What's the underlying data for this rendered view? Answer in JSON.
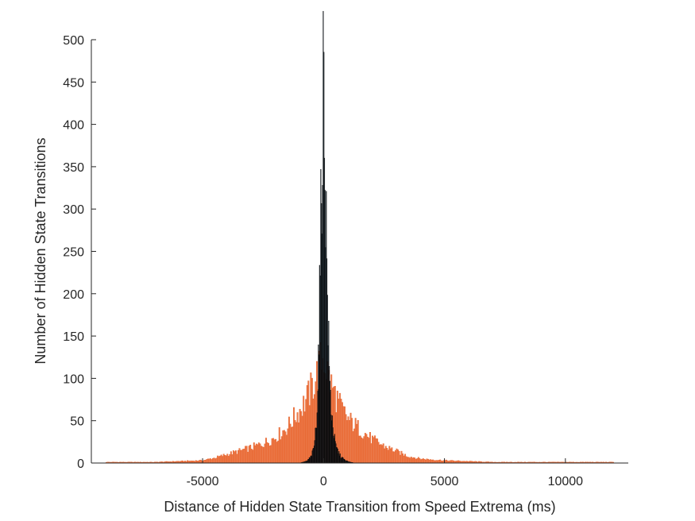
{
  "chart_data": {
    "type": "bar",
    "title": "",
    "xlabel": "Distance of Hidden State Transition from Speed Extrema (ms)",
    "ylabel": "Number of Hidden State Transitions",
    "xlim": [
      -9600,
      12600
    ],
    "ylim": [
      0,
      500
    ],
    "xticks": [
      -5000,
      0,
      5000,
      10000
    ],
    "yticks": [
      0,
      50,
      100,
      150,
      200,
      250,
      300,
      350,
      400,
      450,
      500
    ],
    "grid": false,
    "legend": "none",
    "series": [
      {
        "color": "#e8632b",
        "bin_width": 50,
        "points": [
          [
            -9000,
            1
          ],
          [
            -8000,
            1
          ],
          [
            -7000,
            1
          ],
          [
            -6000,
            2
          ],
          [
            -5000,
            3
          ],
          [
            -4500,
            6
          ],
          [
            -4000,
            10
          ],
          [
            -3500,
            14
          ],
          [
            -3000,
            18
          ],
          [
            -2500,
            23
          ],
          [
            -2000,
            30
          ],
          [
            -1500,
            42
          ],
          [
            -1000,
            62
          ],
          [
            -700,
            75
          ],
          [
            -500,
            88
          ],
          [
            -300,
            102
          ],
          [
            -150,
            115
          ],
          [
            0,
            127
          ],
          [
            150,
            110
          ],
          [
            300,
            93
          ],
          [
            500,
            80
          ],
          [
            700,
            66
          ],
          [
            1000,
            52
          ],
          [
            1500,
            40
          ],
          [
            2000,
            28
          ],
          [
            2500,
            20
          ],
          [
            3000,
            14
          ],
          [
            3500,
            8
          ],
          [
            4000,
            5
          ],
          [
            5000,
            3
          ],
          [
            6000,
            2
          ],
          [
            7000,
            1
          ],
          [
            8000,
            1
          ],
          [
            9000,
            1
          ],
          [
            10000,
            1
          ],
          [
            11000,
            1
          ],
          [
            12000,
            1
          ]
        ]
      },
      {
        "color": "#0d2535",
        "bin_width": 25,
        "points": [
          [
            -1000,
            0
          ],
          [
            -700,
            2
          ],
          [
            -500,
            8
          ],
          [
            -400,
            18
          ],
          [
            -300,
            45
          ],
          [
            -250,
            80
          ],
          [
            -200,
            145
          ],
          [
            -150,
            210
          ],
          [
            -100,
            300
          ],
          [
            -50,
            380
          ],
          [
            0,
            470
          ],
          [
            50,
            395
          ],
          [
            100,
            300
          ],
          [
            150,
            215
          ],
          [
            200,
            150
          ],
          [
            250,
            100
          ],
          [
            300,
            70
          ],
          [
            400,
            40
          ],
          [
            500,
            20
          ],
          [
            700,
            8
          ],
          [
            900,
            3
          ],
          [
            1100,
            1
          ],
          [
            1300,
            0
          ]
        ]
      }
    ]
  }
}
